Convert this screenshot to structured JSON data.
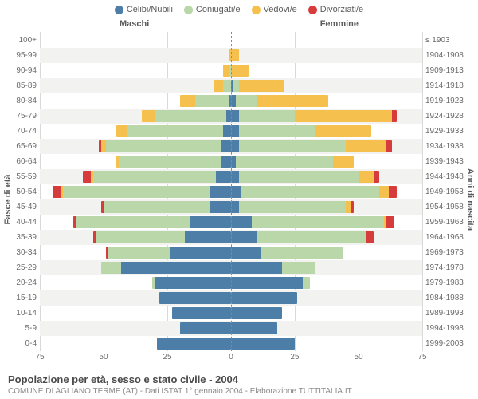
{
  "legend": [
    {
      "label": "Celibi/Nubili",
      "color": "#4d7ea8"
    },
    {
      "label": "Coniugati/e",
      "color": "#b9d7a8"
    },
    {
      "label": "Vedovi/e",
      "color": "#f5c04e"
    },
    {
      "label": "Divorziati/e",
      "color": "#d73c3c"
    }
  ],
  "gender": {
    "male": "Maschi",
    "female": "Femmine"
  },
  "axis": {
    "left_title": "Fasce di età",
    "right_title": "Anni di nascita",
    "ticks": [
      75,
      50,
      25,
      0,
      25,
      50,
      75
    ],
    "max": 75
  },
  "colors": {
    "celibi": "#4d7ea8",
    "coniugati": "#b9d7a8",
    "vedovi": "#f5c04e",
    "divorziati": "#d73c3c",
    "grid": "#d9d9d9",
    "center": "#888888",
    "bg": "#f2f2f0"
  },
  "rows": [
    {
      "age": "100+",
      "birth": "≤ 1903",
      "m": {
        "c": 0,
        "k": 0,
        "v": 0,
        "d": 0
      },
      "f": {
        "c": 0,
        "k": 0,
        "v": 0,
        "d": 0
      }
    },
    {
      "age": "95-99",
      "birth": "1904-1908",
      "m": {
        "c": 0,
        "k": 0,
        "v": 1,
        "d": 0
      },
      "f": {
        "c": 0,
        "k": 0,
        "v": 3,
        "d": 0
      }
    },
    {
      "age": "90-94",
      "birth": "1909-1913",
      "m": {
        "c": 0,
        "k": 1,
        "v": 2,
        "d": 0
      },
      "f": {
        "c": 0,
        "k": 0,
        "v": 7,
        "d": 0
      }
    },
    {
      "age": "85-89",
      "birth": "1914-1918",
      "m": {
        "c": 0,
        "k": 3,
        "v": 4,
        "d": 0
      },
      "f": {
        "c": 1,
        "k": 2,
        "v": 18,
        "d": 0
      }
    },
    {
      "age": "80-84",
      "birth": "1919-1923",
      "m": {
        "c": 1,
        "k": 13,
        "v": 6,
        "d": 0
      },
      "f": {
        "c": 2,
        "k": 8,
        "v": 28,
        "d": 0
      }
    },
    {
      "age": "75-79",
      "birth": "1924-1928",
      "m": {
        "c": 2,
        "k": 28,
        "v": 5,
        "d": 0
      },
      "f": {
        "c": 3,
        "k": 22,
        "v": 38,
        "d": 2
      }
    },
    {
      "age": "70-74",
      "birth": "1929-1933",
      "m": {
        "c": 3,
        "k": 38,
        "v": 4,
        "d": 0
      },
      "f": {
        "c": 3,
        "k": 30,
        "v": 22,
        "d": 0
      }
    },
    {
      "age": "65-69",
      "birth": "1934-1938",
      "m": {
        "c": 4,
        "k": 45,
        "v": 2,
        "d": 1
      },
      "f": {
        "c": 3,
        "k": 42,
        "v": 16,
        "d": 2
      }
    },
    {
      "age": "60-64",
      "birth": "1939-1943",
      "m": {
        "c": 4,
        "k": 40,
        "v": 1,
        "d": 0
      },
      "f": {
        "c": 2,
        "k": 38,
        "v": 8,
        "d": 0
      }
    },
    {
      "age": "55-59",
      "birth": "1944-1948",
      "m": {
        "c": 6,
        "k": 48,
        "v": 1,
        "d": 3
      },
      "f": {
        "c": 3,
        "k": 47,
        "v": 6,
        "d": 2
      }
    },
    {
      "age": "50-54",
      "birth": "1949-1953",
      "m": {
        "c": 8,
        "k": 58,
        "v": 1,
        "d": 3
      },
      "f": {
        "c": 4,
        "k": 54,
        "v": 4,
        "d": 3
      }
    },
    {
      "age": "45-49",
      "birth": "1954-1958",
      "m": {
        "c": 8,
        "k": 42,
        "v": 0,
        "d": 1
      },
      "f": {
        "c": 3,
        "k": 42,
        "v": 2,
        "d": 1
      }
    },
    {
      "age": "40-44",
      "birth": "1959-1963",
      "m": {
        "c": 16,
        "k": 45,
        "v": 0,
        "d": 1
      },
      "f": {
        "c": 8,
        "k": 52,
        "v": 1,
        "d": 3
      }
    },
    {
      "age": "35-39",
      "birth": "1964-1968",
      "m": {
        "c": 18,
        "k": 35,
        "v": 0,
        "d": 1
      },
      "f": {
        "c": 10,
        "k": 43,
        "v": 0,
        "d": 3
      }
    },
    {
      "age": "30-34",
      "birth": "1969-1973",
      "m": {
        "c": 24,
        "k": 24,
        "v": 0,
        "d": 1
      },
      "f": {
        "c": 12,
        "k": 32,
        "v": 0,
        "d": 0
      }
    },
    {
      "age": "25-29",
      "birth": "1974-1978",
      "m": {
        "c": 43,
        "k": 8,
        "v": 0,
        "d": 0
      },
      "f": {
        "c": 20,
        "k": 13,
        "v": 0,
        "d": 0
      }
    },
    {
      "age": "20-24",
      "birth": "1979-1983",
      "m": {
        "c": 30,
        "k": 1,
        "v": 0,
        "d": 0
      },
      "f": {
        "c": 28,
        "k": 3,
        "v": 0,
        "d": 0
      }
    },
    {
      "age": "15-19",
      "birth": "1984-1988",
      "m": {
        "c": 28,
        "k": 0,
        "v": 0,
        "d": 0
      },
      "f": {
        "c": 26,
        "k": 0,
        "v": 0,
        "d": 0
      }
    },
    {
      "age": "10-14",
      "birth": "1989-1993",
      "m": {
        "c": 23,
        "k": 0,
        "v": 0,
        "d": 0
      },
      "f": {
        "c": 20,
        "k": 0,
        "v": 0,
        "d": 0
      }
    },
    {
      "age": "5-9",
      "birth": "1994-1998",
      "m": {
        "c": 20,
        "k": 0,
        "v": 0,
        "d": 0
      },
      "f": {
        "c": 18,
        "k": 0,
        "v": 0,
        "d": 0
      }
    },
    {
      "age": "0-4",
      "birth": "1999-2003",
      "m": {
        "c": 29,
        "k": 0,
        "v": 0,
        "d": 0
      },
      "f": {
        "c": 25,
        "k": 0,
        "v": 0,
        "d": 0
      }
    }
  ],
  "footer": {
    "title": "Popolazione per età, sesso e stato civile - 2004",
    "sub": "COMUNE DI AGLIANO TERME (AT) - Dati ISTAT 1° gennaio 2004 - Elaborazione TUTTITALIA.IT"
  }
}
